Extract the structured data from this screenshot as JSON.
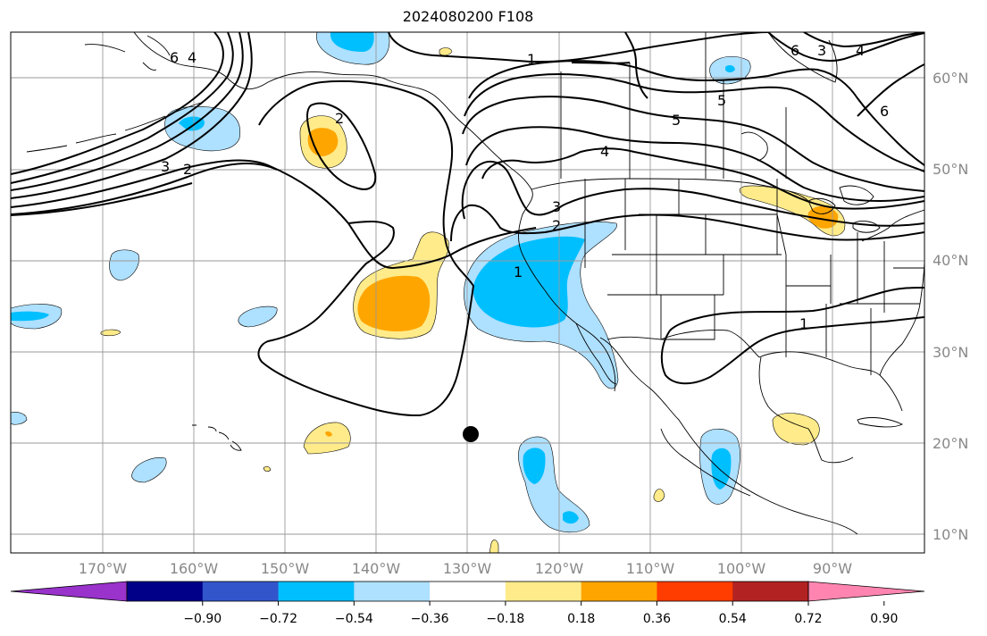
{
  "title": "2024080200 F108",
  "map": {
    "latitude_labels": [
      "60°N",
      "50°N",
      "40°N",
      "30°N",
      "20°N",
      "10°N"
    ],
    "longitude_labels": [
      "170°W",
      "160°W",
      "150°W",
      "140°W",
      "130°W",
      "120°W",
      "110°W",
      "100°W",
      "90°W"
    ],
    "grid": true,
    "marker": "storm-position-dot",
    "contour_labels": [
      "1",
      "2",
      "3",
      "4",
      "5",
      "6",
      "2",
      "1",
      "1",
      "3",
      "4",
      "5",
      "6",
      "4",
      "6",
      "2",
      "3"
    ]
  },
  "colorbar": {
    "ticks": [
      "−0.90",
      "−0.72",
      "−0.54",
      "−0.36",
      "−0.18",
      "0.18",
      "0.36",
      "0.54",
      "0.72",
      "0.90"
    ],
    "colors": [
      "#9933cc",
      "#000088",
      "#3355cc",
      "#00bfff",
      "#aee0ff",
      "#ffffff",
      "#ffeb8a",
      "#ffa500",
      "#ff3d00",
      "#b22222",
      "#ff85b0"
    ]
  }
}
